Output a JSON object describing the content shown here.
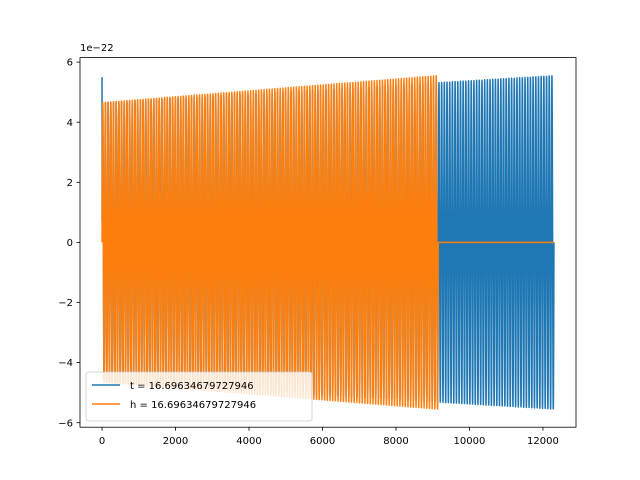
{
  "chart_data": {
    "type": "line",
    "x_range": [
      -600,
      12900
    ],
    "y_range": [
      -6.15e-22,
      6.15e-22
    ],
    "y_offset_label": "1e−22",
    "x_ticks": [
      {
        "value": 0,
        "label": "0"
      },
      {
        "value": 2000,
        "label": "2000"
      },
      {
        "value": 4000,
        "label": "4000"
      },
      {
        "value": 6000,
        "label": "6000"
      },
      {
        "value": 8000,
        "label": "8000"
      },
      {
        "value": 10000,
        "label": "10000"
      },
      {
        "value": 12000,
        "label": "12000"
      }
    ],
    "y_ticks": [
      {
        "value": -6e-22,
        "label": "−6"
      },
      {
        "value": -4e-22,
        "label": "−4"
      },
      {
        "value": -2e-22,
        "label": "−2"
      },
      {
        "value": 0,
        "label": "0"
      },
      {
        "value": 2e-22,
        "label": "2"
      },
      {
        "value": 4e-22,
        "label": "4"
      },
      {
        "value": 6e-22,
        "label": "6"
      }
    ],
    "grid": false,
    "legend_position": "lower-left",
    "series": [
      {
        "name": "t = 16.69634679727946",
        "color": "#1f77b4",
        "kind": "oscillation",
        "x_start": 0,
        "x_end": 12300,
        "cycles": 168,
        "amplitude_start": 4.65e-22,
        "amplitude_end": 5.55e-22,
        "initial_spike": 5.5e-22
      },
      {
        "name": "h = 16.69634679727946",
        "color": "#ff7f0e",
        "kind": "oscillation",
        "x_start": 0,
        "x_end": 9150,
        "cycles": 125,
        "amplitude_start": 4.65e-22,
        "amplitude_end": 5.55e-22,
        "flat_after": [
          9150,
          12300
        ]
      }
    ]
  }
}
